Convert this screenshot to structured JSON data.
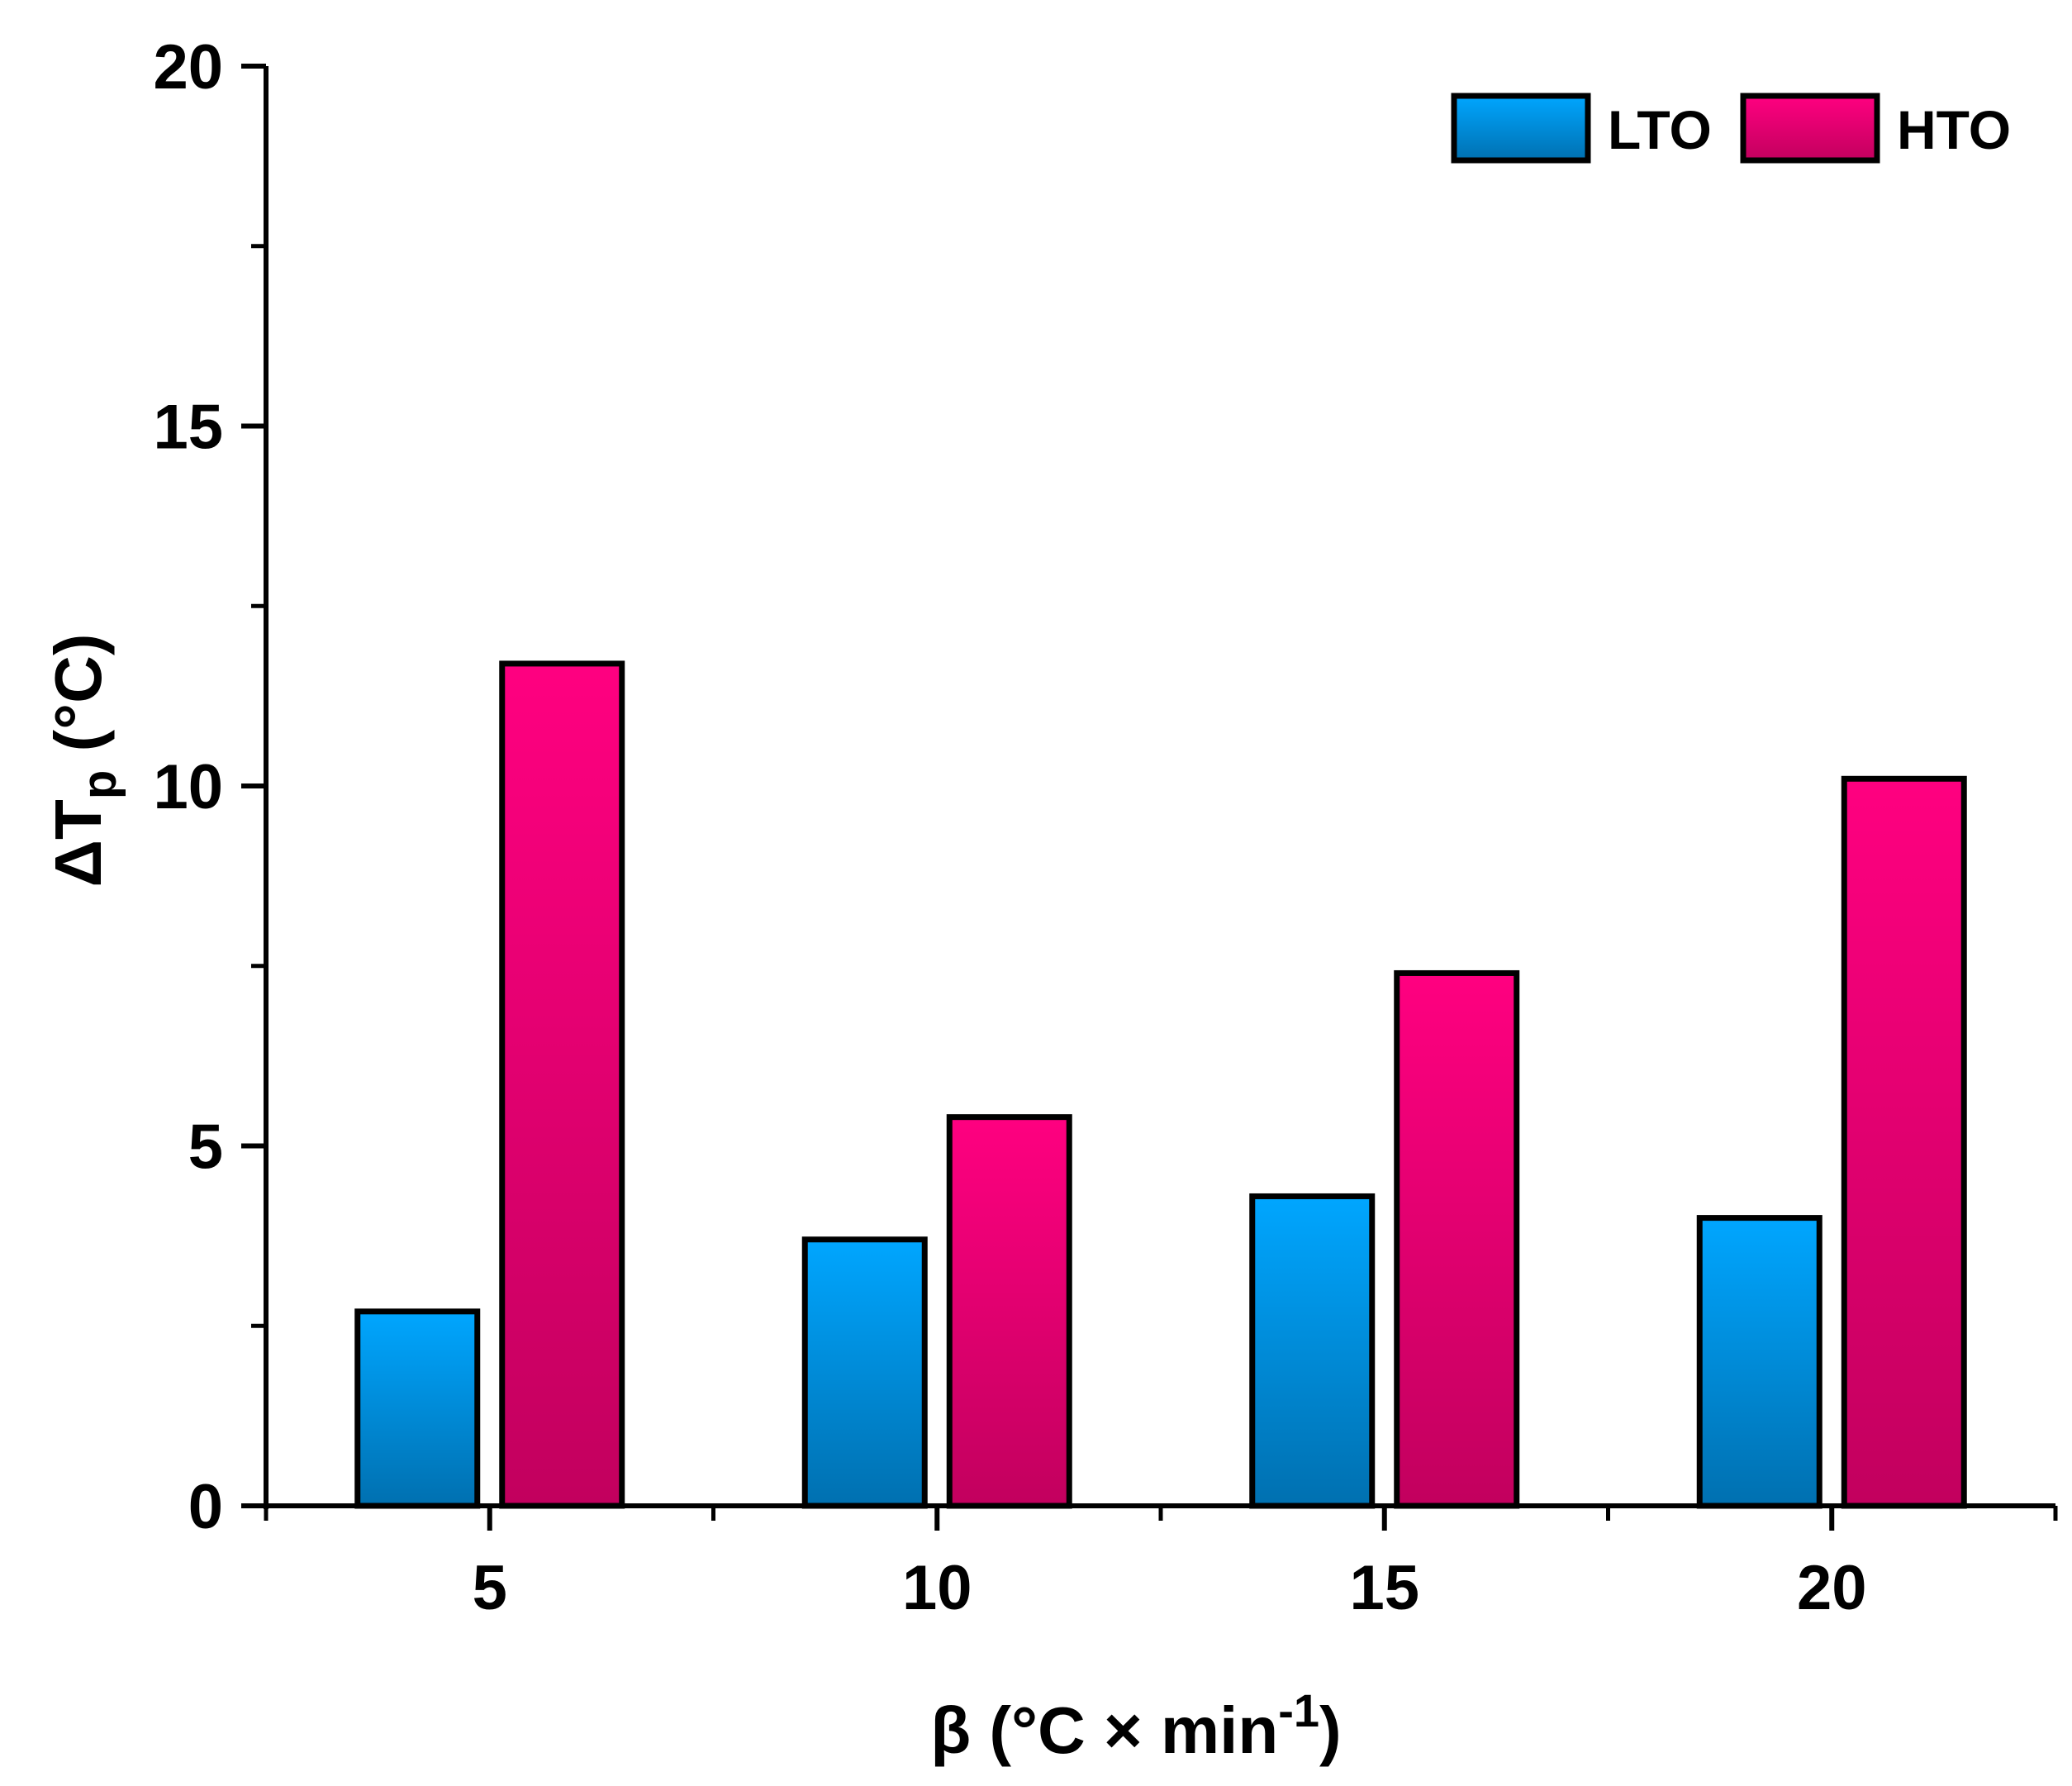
{
  "chart_data": {
    "type": "bar",
    "categories": [
      "5",
      "10",
      "15",
      "20"
    ],
    "series": [
      {
        "name": "LTO",
        "values": [
          2.7,
          3.7,
          4.3,
          4.0
        ],
        "color_top": "#00a6ff",
        "color_bottom": "#0070b0"
      },
      {
        "name": "HTO",
        "values": [
          11.7,
          5.4,
          7.4,
          10.1
        ],
        "color_top": "#ff0080",
        "color_bottom": "#c2005e"
      }
    ],
    "ylabel_main": "ΔT",
    "ylabel_sub": "p",
    "ylabel_unit": " (°C)",
    "xlabel_main": "β (°C × min",
    "xlabel_sup": "-1",
    "xlabel_end": ")",
    "ylim": [
      0,
      20
    ],
    "y_ticks": [
      "0",
      "5",
      "10",
      "15",
      "20"
    ],
    "legend_position": "top-right",
    "grid": false
  }
}
